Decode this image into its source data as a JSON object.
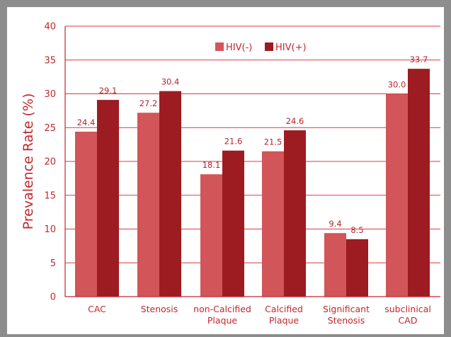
{
  "chart_data": {
    "type": "bar",
    "ylabel": "Prevalence Rate (%)",
    "xlabel": "",
    "ylim": [
      0,
      40
    ],
    "yticks": [
      0,
      5,
      10,
      15,
      20,
      25,
      30,
      35,
      40
    ],
    "grid": true,
    "legend_position": "top-center",
    "categories": [
      [
        "CAC"
      ],
      [
        "Stenosis"
      ],
      [
        "non-Calcified",
        "Plaque"
      ],
      [
        "Calcified",
        "Plaque"
      ],
      [
        "Significant",
        "Stenosis"
      ],
      [
        "subclinical",
        "CAD"
      ]
    ],
    "series": [
      {
        "name": "HIV(-)",
        "color": "#d2555a",
        "values": [
          24.4,
          27.2,
          18.1,
          21.5,
          9.4,
          30.0
        ],
        "labels": [
          "24.4",
          "27.2",
          "18.1",
          "21.5",
          "9.4",
          "30.0"
        ]
      },
      {
        "name": "HIV(+)",
        "color": "#9c1c22",
        "values": [
          29.1,
          30.4,
          21.6,
          24.6,
          8.5,
          33.7
        ],
        "labels": [
          "29.1",
          "30.4",
          "21.6",
          "24.6",
          "8.5",
          "33.7"
        ]
      }
    ],
    "colors": {
      "axis": "#c1272d",
      "grid": "#d93a40",
      "text": "#c1272d"
    }
  }
}
